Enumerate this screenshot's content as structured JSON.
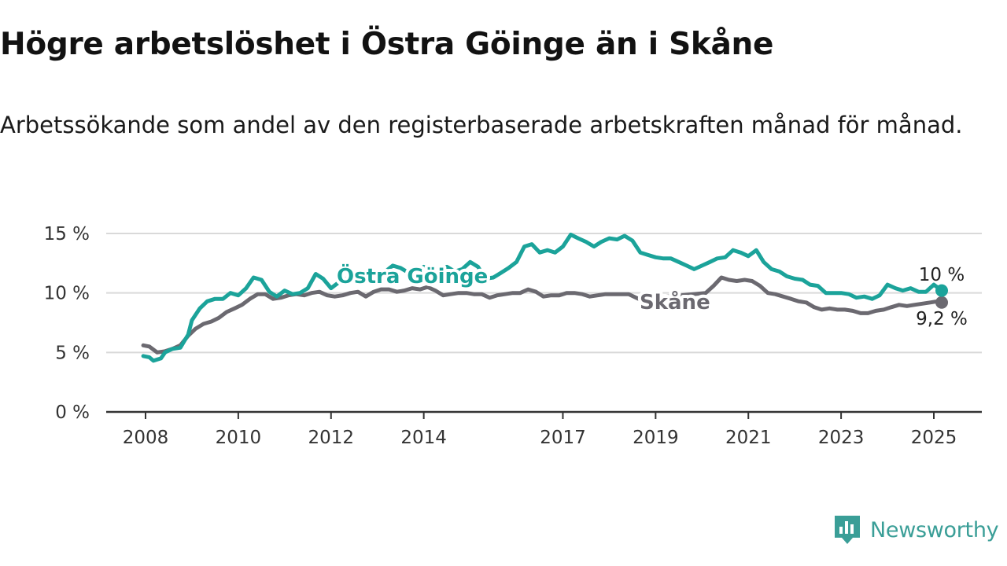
{
  "header": {
    "title": "Högre arbetslöshet i Östra Göinge än i Skåne",
    "subtitle": "Arbetssökande som andel av den registerbaserade arbetskraften månad för månad."
  },
  "brand": {
    "name": "Newsworthy",
    "logo_icon": "bar-chart-speech-bubble-icon",
    "color": "#3a9e97"
  },
  "chart_data": {
    "type": "line",
    "title": "Högre arbetslöshet i Östra Göinge än i Skåne",
    "subtitle": "Arbetssökande som andel av den registerbaserade arbetskraften månad för månad.",
    "xlabel": "",
    "ylabel": "",
    "x_unit": "year",
    "xlim": [
      2007.6,
      2025.6
    ],
    "ylim": [
      0,
      15
    ],
    "y_ticks": [
      0,
      5,
      10,
      15
    ],
    "y_tick_labels": [
      "0 %",
      "5 %",
      "10 %",
      "15 %"
    ],
    "x_ticks": [
      2008,
      2010,
      2012,
      2014,
      2017,
      2019,
      2021,
      2023,
      2025
    ],
    "x_tick_labels": [
      "2008",
      "2010",
      "2012",
      "2014",
      "2017",
      "2019",
      "2021",
      "2023",
      "2025"
    ],
    "grid": true,
    "legend": "inline labels",
    "series": [
      {
        "name": "Östra Göinge",
        "color": "#1ba39a",
        "end_label": "10 %",
        "points": [
          [
            2007.95,
            4.7
          ],
          [
            2008.08,
            4.6
          ],
          [
            2008.17,
            4.3
          ],
          [
            2008.33,
            4.5
          ],
          [
            2008.42,
            5.0
          ],
          [
            2008.58,
            5.3
          ],
          [
            2008.75,
            5.4
          ],
          [
            2008.92,
            6.5
          ],
          [
            2009.0,
            7.7
          ],
          [
            2009.17,
            8.7
          ],
          [
            2009.33,
            9.3
          ],
          [
            2009.5,
            9.5
          ],
          [
            2009.67,
            9.5
          ],
          [
            2009.83,
            10.0
          ],
          [
            2010.0,
            9.8
          ],
          [
            2010.17,
            10.4
          ],
          [
            2010.33,
            11.3
          ],
          [
            2010.5,
            11.1
          ],
          [
            2010.67,
            10.1
          ],
          [
            2010.83,
            9.7
          ],
          [
            2011.0,
            10.2
          ],
          [
            2011.17,
            9.9
          ],
          [
            2011.33,
            10.0
          ],
          [
            2011.5,
            10.4
          ],
          [
            2011.67,
            11.6
          ],
          [
            2011.83,
            11.2
          ],
          [
            2012.0,
            10.4
          ],
          [
            2012.17,
            10.9
          ],
          [
            2012.33,
            11.2
          ],
          [
            2012.5,
            11.0
          ],
          [
            2012.67,
            11.5
          ],
          [
            2012.83,
            12.0
          ],
          [
            2013.0,
            11.6
          ],
          [
            2013.17,
            11.8
          ],
          [
            2013.33,
            12.3
          ],
          [
            2013.5,
            12.1
          ],
          [
            2013.67,
            11.7
          ],
          [
            2013.83,
            11.5
          ],
          [
            2014.0,
            12.2
          ],
          [
            2014.17,
            11.9
          ],
          [
            2014.33,
            12.0
          ],
          [
            2014.5,
            12.2
          ],
          [
            2014.67,
            11.8
          ],
          [
            2014.83,
            12.0
          ],
          [
            2015.0,
            12.6
          ],
          [
            2015.17,
            12.2
          ],
          [
            2015.33,
            11.2
          ],
          [
            2015.5,
            11.3
          ],
          [
            2015.67,
            11.7
          ],
          [
            2015.83,
            12.1
          ],
          [
            2016.0,
            12.6
          ],
          [
            2016.17,
            13.9
          ],
          [
            2016.33,
            14.1
          ],
          [
            2016.5,
            13.4
          ],
          [
            2016.67,
            13.6
          ],
          [
            2016.83,
            13.4
          ],
          [
            2017.0,
            13.9
          ],
          [
            2017.17,
            14.9
          ],
          [
            2017.33,
            14.6
          ],
          [
            2017.5,
            14.3
          ],
          [
            2017.67,
            13.9
          ],
          [
            2017.83,
            14.3
          ],
          [
            2018.0,
            14.6
          ],
          [
            2018.17,
            14.5
          ],
          [
            2018.33,
            14.8
          ],
          [
            2018.5,
            14.4
          ],
          [
            2018.67,
            13.4
          ],
          [
            2018.83,
            13.2
          ],
          [
            2019.0,
            13.0
          ],
          [
            2019.17,
            12.9
          ],
          [
            2019.33,
            12.9
          ],
          [
            2019.5,
            12.6
          ],
          [
            2019.67,
            12.3
          ],
          [
            2019.83,
            12.0
          ],
          [
            2020.0,
            12.3
          ],
          [
            2020.17,
            12.6
          ],
          [
            2020.33,
            12.9
          ],
          [
            2020.5,
            13.0
          ],
          [
            2020.67,
            13.6
          ],
          [
            2020.83,
            13.4
          ],
          [
            2021.0,
            13.1
          ],
          [
            2021.17,
            13.6
          ],
          [
            2021.33,
            12.6
          ],
          [
            2021.5,
            12.0
          ],
          [
            2021.67,
            11.8
          ],
          [
            2021.83,
            11.4
          ],
          [
            2022.0,
            11.2
          ],
          [
            2022.17,
            11.1
          ],
          [
            2022.33,
            10.7
          ],
          [
            2022.5,
            10.6
          ],
          [
            2022.67,
            10.0
          ],
          [
            2022.83,
            10.0
          ],
          [
            2023.0,
            10.0
          ],
          [
            2023.17,
            9.9
          ],
          [
            2023.33,
            9.6
          ],
          [
            2023.5,
            9.7
          ],
          [
            2023.67,
            9.5
          ],
          [
            2023.83,
            9.8
          ],
          [
            2024.0,
            10.7
          ],
          [
            2024.17,
            10.4
          ],
          [
            2024.33,
            10.2
          ],
          [
            2024.5,
            10.4
          ],
          [
            2024.67,
            10.1
          ],
          [
            2024.83,
            10.1
          ],
          [
            2025.0,
            10.7
          ],
          [
            2025.17,
            10.2
          ]
        ]
      },
      {
        "name": "Skåne",
        "color": "#6b6970",
        "end_label": "9,2 %",
        "points": [
          [
            2007.95,
            5.6
          ],
          [
            2008.08,
            5.5
          ],
          [
            2008.25,
            5.0
          ],
          [
            2008.42,
            5.1
          ],
          [
            2008.58,
            5.3
          ],
          [
            2008.75,
            5.6
          ],
          [
            2008.92,
            6.4
          ],
          [
            2009.08,
            7.0
          ],
          [
            2009.25,
            7.4
          ],
          [
            2009.42,
            7.6
          ],
          [
            2009.58,
            7.9
          ],
          [
            2009.75,
            8.4
          ],
          [
            2009.92,
            8.7
          ],
          [
            2010.08,
            9.0
          ],
          [
            2010.25,
            9.5
          ],
          [
            2010.42,
            9.9
          ],
          [
            2010.58,
            9.9
          ],
          [
            2010.75,
            9.5
          ],
          [
            2010.92,
            9.6
          ],
          [
            2011.08,
            9.8
          ],
          [
            2011.25,
            9.9
          ],
          [
            2011.42,
            9.8
          ],
          [
            2011.58,
            10.0
          ],
          [
            2011.75,
            10.1
          ],
          [
            2011.92,
            9.8
          ],
          [
            2012.08,
            9.7
          ],
          [
            2012.25,
            9.8
          ],
          [
            2012.42,
            10.0
          ],
          [
            2012.58,
            10.1
          ],
          [
            2012.75,
            9.7
          ],
          [
            2012.92,
            10.1
          ],
          [
            2013.08,
            10.3
          ],
          [
            2013.25,
            10.3
          ],
          [
            2013.42,
            10.1
          ],
          [
            2013.58,
            10.2
          ],
          [
            2013.75,
            10.4
          ],
          [
            2013.92,
            10.3
          ],
          [
            2014.08,
            10.5
          ],
          [
            2014.25,
            10.2
          ],
          [
            2014.42,
            9.8
          ],
          [
            2014.58,
            9.9
          ],
          [
            2014.75,
            10.0
          ],
          [
            2014.92,
            10.0
          ],
          [
            2015.08,
            9.9
          ],
          [
            2015.25,
            9.9
          ],
          [
            2015.42,
            9.6
          ],
          [
            2015.58,
            9.8
          ],
          [
            2015.75,
            9.9
          ],
          [
            2015.92,
            10.0
          ],
          [
            2016.08,
            10.0
          ],
          [
            2016.25,
            10.3
          ],
          [
            2016.42,
            10.1
          ],
          [
            2016.58,
            9.7
          ],
          [
            2016.75,
            9.8
          ],
          [
            2016.92,
            9.8
          ],
          [
            2017.08,
            10.0
          ],
          [
            2017.25,
            10.0
          ],
          [
            2017.42,
            9.9
          ],
          [
            2017.58,
            9.7
          ],
          [
            2017.75,
            9.8
          ],
          [
            2017.92,
            9.9
          ],
          [
            2018.08,
            9.9
          ],
          [
            2018.25,
            9.9
          ],
          [
            2018.42,
            9.9
          ],
          [
            2018.58,
            9.6
          ],
          [
            2018.75,
            9.3
          ],
          [
            2018.92,
            9.4
          ],
          [
            2019.0,
            9.6
          ],
          [
            2020.08,
            10.0
          ],
          [
            2020.25,
            10.6
          ],
          [
            2020.42,
            11.3
          ],
          [
            2020.58,
            11.1
          ],
          [
            2020.75,
            11.0
          ],
          [
            2020.92,
            11.1
          ],
          [
            2021.08,
            11.0
          ],
          [
            2021.25,
            10.6
          ],
          [
            2021.42,
            10.0
          ],
          [
            2021.58,
            9.9
          ],
          [
            2021.75,
            9.7
          ],
          [
            2021.92,
            9.5
          ],
          [
            2022.08,
            9.3
          ],
          [
            2022.25,
            9.2
          ],
          [
            2022.42,
            8.8
          ],
          [
            2022.58,
            8.6
          ],
          [
            2022.75,
            8.7
          ],
          [
            2022.92,
            8.6
          ],
          [
            2023.08,
            8.6
          ],
          [
            2023.25,
            8.5
          ],
          [
            2023.42,
            8.3
          ],
          [
            2023.58,
            8.3
          ],
          [
            2023.75,
            8.5
          ],
          [
            2023.92,
            8.6
          ],
          [
            2024.08,
            8.8
          ],
          [
            2024.25,
            9.0
          ],
          [
            2024.42,
            8.9
          ],
          [
            2024.58,
            9.0
          ],
          [
            2024.75,
            9.1
          ],
          [
            2024.92,
            9.2
          ],
          [
            2025.08,
            9.3
          ],
          [
            2025.17,
            9.2
          ]
        ]
      }
    ]
  }
}
